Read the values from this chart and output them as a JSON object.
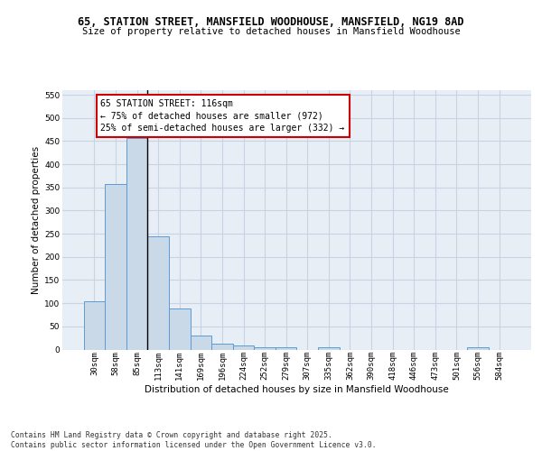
{
  "title_line1": "65, STATION STREET, MANSFIELD WOODHOUSE, MANSFIELD, NG19 8AD",
  "title_line2": "Size of property relative to detached houses in Mansfield Woodhouse",
  "xlabel": "Distribution of detached houses by size in Mansfield Woodhouse",
  "ylabel": "Number of detached properties",
  "categories": [
    "30sqm",
    "58sqm",
    "85sqm",
    "113sqm",
    "141sqm",
    "169sqm",
    "196sqm",
    "224sqm",
    "252sqm",
    "279sqm",
    "307sqm",
    "335sqm",
    "362sqm",
    "390sqm",
    "418sqm",
    "446sqm",
    "473sqm",
    "501sqm",
    "556sqm",
    "584sqm"
  ],
  "values": [
    105,
    357,
    457,
    245,
    88,
    30,
    12,
    8,
    5,
    5,
    0,
    5,
    0,
    0,
    0,
    0,
    0,
    0,
    5,
    0
  ],
  "bar_color": "#c9d9e8",
  "bar_edge_color": "#5b9bd5",
  "highlight_line_color": "#000000",
  "annotation_text": "65 STATION STREET: 116sqm\n← 75% of detached houses are smaller (972)\n25% of semi-detached houses are larger (332) →",
  "annotation_box_color": "#ffffff",
  "annotation_box_edge_color": "#cc0000",
  "ylim": [
    0,
    560
  ],
  "yticks": [
    0,
    50,
    100,
    150,
    200,
    250,
    300,
    350,
    400,
    450,
    500,
    550
  ],
  "grid_color": "#c8d4e3",
  "background_color": "#e8eef6",
  "footer_text": "Contains HM Land Registry data © Crown copyright and database right 2025.\nContains public sector information licensed under the Open Government Licence v3.0.",
  "title_fontsize": 8.5,
  "subtitle_fontsize": 7.5,
  "axis_label_fontsize": 7.5,
  "tick_fontsize": 6.5,
  "annotation_fontsize": 7.0,
  "footer_fontsize": 5.8
}
